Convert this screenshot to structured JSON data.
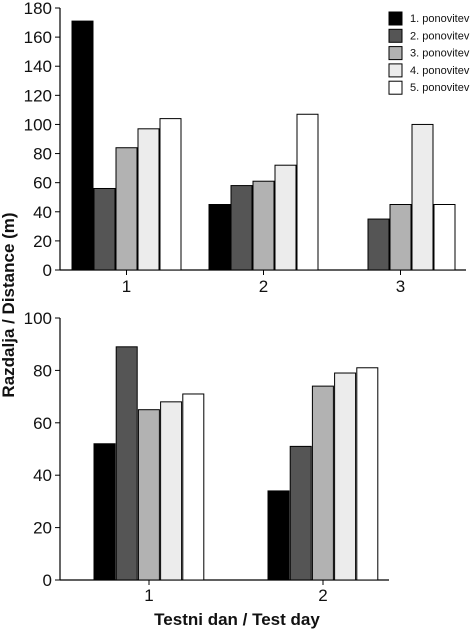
{
  "chart_data": [
    {
      "type": "bar",
      "categories": [
        "1",
        "2",
        "3"
      ],
      "ylim": [
        0,
        180
      ],
      "yticks": [
        0,
        20,
        40,
        60,
        80,
        100,
        120,
        140,
        160,
        180
      ],
      "legend_position": "top-right",
      "series": [
        {
          "name": "1. ponovitev",
          "color": "#000000",
          "values": [
            171,
            45,
            null
          ]
        },
        {
          "name": "2. ponovitev",
          "color": "#555555",
          "values": [
            56,
            58,
            35
          ]
        },
        {
          "name": "3. ponovitev",
          "color": "#b2b2b2",
          "values": [
            84,
            61,
            45
          ]
        },
        {
          "name": "4. ponovitev",
          "color": "#ececec",
          "values": [
            97,
            72,
            100
          ]
        },
        {
          "name": "5. ponovitev",
          "color": "#ffffff",
          "values": [
            104,
            107,
            45
          ]
        }
      ]
    },
    {
      "type": "bar",
      "categories": [
        "1",
        "2"
      ],
      "ylim": [
        0,
        100
      ],
      "yticks": [
        0,
        20,
        40,
        60,
        80,
        100
      ],
      "series": [
        {
          "name": "1. ponovitev",
          "color": "#000000",
          "values": [
            52,
            34
          ]
        },
        {
          "name": "2. ponovitev",
          "color": "#555555",
          "values": [
            89,
            51
          ]
        },
        {
          "name": "3. ponovitev",
          "color": "#b2b2b2",
          "values": [
            65,
            74
          ]
        },
        {
          "name": "4. ponovitev",
          "color": "#ececec",
          "values": [
            68,
            79
          ]
        },
        {
          "name": "5. ponovitev",
          "color": "#ffffff",
          "values": [
            71,
            81
          ]
        }
      ]
    }
  ],
  "ylabel": "Razdalja / Distance (m)",
  "xlabel": "Testni dan / Test day"
}
